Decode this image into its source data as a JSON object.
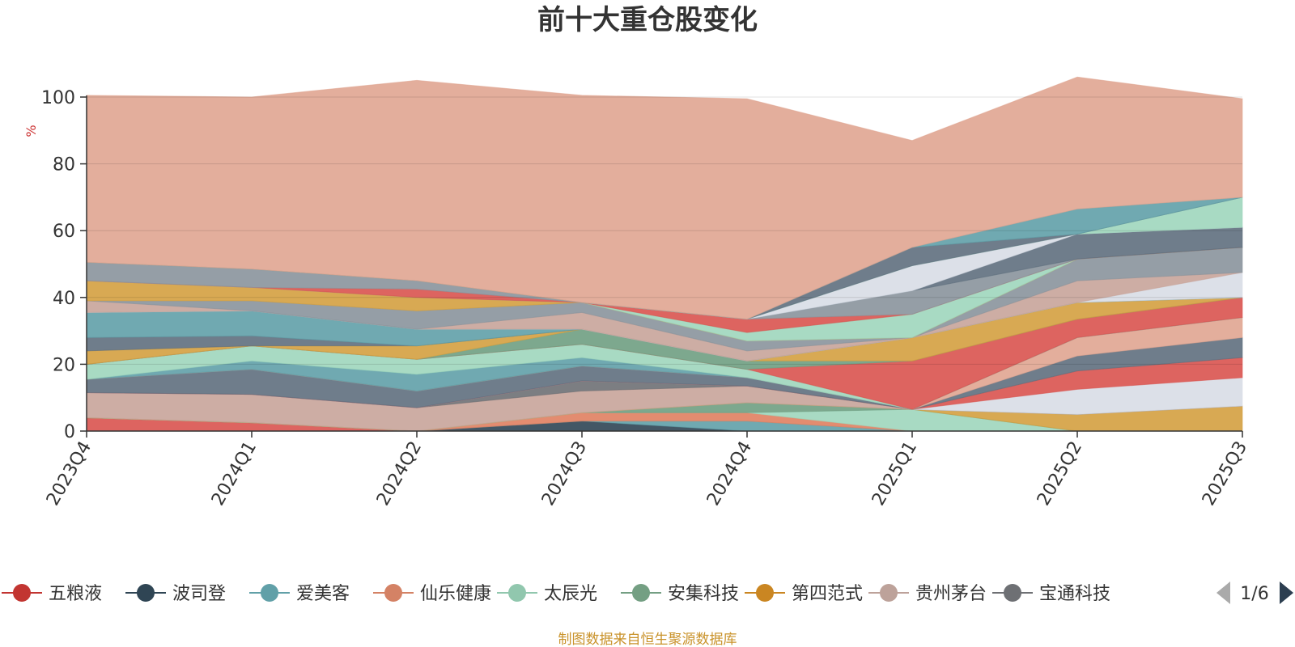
{
  "colors": {
    "background": "#ffffff",
    "other_area": "#e0a591",
    "source_text": "#c9922a",
    "unit_text": "#cc3333",
    "pager_active": "#2c3e50",
    "pager_inactive": "#aaaaaa"
  },
  "chart_data": {
    "type": "area",
    "stacked": true,
    "title": "前十大重仓股变化",
    "ylabel": "%",
    "ylim": [
      0,
      100
    ],
    "yticks": [
      0,
      20,
      40,
      60,
      80,
      100
    ],
    "grid": true,
    "categories": [
      "2023Q4",
      "2024Q1",
      "2024Q2",
      "2024Q3",
      "2024Q4",
      "2025Q1",
      "2025Q2",
      "2025Q3"
    ],
    "series": [
      {
        "name": "五粮液",
        "color": "#d9534f",
        "values": [
          4.0,
          2.5,
          0,
          0,
          0,
          0,
          0,
          0
        ]
      },
      {
        "name": "波司登",
        "color": "#2f4554",
        "values": [
          0,
          0,
          0,
          3.0,
          0,
          0,
          0,
          0
        ]
      },
      {
        "name": "爱美客",
        "color": "#61a0a8",
        "values": [
          0,
          0,
          0,
          0,
          3.0,
          0,
          0,
          0
        ]
      },
      {
        "name": "仙乐健康",
        "color": "#e08060",
        "values": [
          0,
          0,
          0,
          2.5,
          2.5,
          0,
          0,
          0
        ]
      },
      {
        "name": "太辰光",
        "color": "#9fd6bd",
        "values": [
          0,
          0,
          0,
          0,
          0,
          6.5,
          0,
          0
        ]
      },
      {
        "name": "安集科技",
        "color": "#6f9e82",
        "values": [
          0,
          0,
          0,
          0,
          3.0,
          0,
          0,
          0
        ]
      },
      {
        "name": "第四范式",
        "color": "#d4a040",
        "values": [
          0,
          0,
          0,
          0,
          0,
          0,
          5.0,
          7.5
        ]
      },
      {
        "name": "贵州茅台",
        "color": "#c8a49a",
        "values": [
          7.5,
          8.5,
          7.0,
          6.5,
          5.0,
          0,
          0,
          0
        ]
      },
      {
        "name": "宝通科技",
        "color": "#6e7074",
        "values": [
          0,
          0,
          0,
          3.0,
          0,
          0,
          0,
          0
        ]
      },
      {
        "color": "#d8dde6",
        "values": [
          0,
          0,
          0,
          0,
          0,
          0,
          7.5,
          8.5
        ]
      },
      {
        "color": "#d9534f",
        "values": [
          0,
          0,
          0,
          0,
          0,
          0,
          5.5,
          6.0
        ]
      },
      {
        "color": "#5f6f7e",
        "values": [
          4.0,
          7.5,
          5.0,
          4.5,
          2.5,
          0,
          4.5,
          6.0
        ]
      },
      {
        "color": "#e0a591",
        "values": [
          0,
          0,
          0,
          0,
          0,
          0,
          5.5,
          6.0
        ]
      },
      {
        "color": "#61a0a8",
        "values": [
          0,
          2.5,
          5.0,
          2.5,
          0,
          0,
          0,
          0
        ]
      },
      {
        "color": "#9fd6bd",
        "values": [
          4.5,
          4.5,
          4.5,
          4.0,
          2.5,
          0,
          0,
          0
        ]
      },
      {
        "color": "#d9534f",
        "values": [
          0,
          0,
          0,
          0,
          0,
          14.5,
          5.5,
          6.0
        ]
      },
      {
        "color": "#6f9e82",
        "values": [
          0,
          0,
          0,
          4.5,
          2.5,
          0,
          0,
          0
        ]
      },
      {
        "color": "#d4a040",
        "values": [
          4.0,
          0,
          4.0,
          0,
          0,
          7.0,
          5.0,
          0
        ]
      },
      {
        "color": "#5f6f7e",
        "values": [
          4.0,
          3.0,
          0,
          0,
          0,
          0,
          0,
          0
        ]
      },
      {
        "color": "#61a0a8",
        "values": [
          7.5,
          7.5,
          5.0,
          0,
          0,
          0,
          0,
          0
        ]
      },
      {
        "color": "#d8dde6",
        "values": [
          0,
          0,
          0,
          0,
          0,
          0,
          0,
          7.5
        ]
      },
      {
        "color": "#c8a49a",
        "values": [
          3.5,
          0,
          0,
          5.0,
          3.0,
          0,
          6.5,
          0
        ]
      },
      {
        "color": "#8a949c",
        "values": [
          0,
          3.0,
          5.5,
          3.0,
          3.0,
          0,
          6.5,
          7.5
        ]
      },
      {
        "color": "#d4a040",
        "values": [
          6.0,
          4.0,
          4.0,
          0,
          0,
          0,
          0,
          0
        ]
      },
      {
        "color": "#9fd6bd",
        "values": [
          0,
          0,
          0,
          0,
          2.5,
          7.0,
          0,
          0
        ]
      },
      {
        "color": "#d9534f",
        "values": [
          0,
          0,
          2.5,
          0,
          4.0,
          0,
          0,
          0
        ]
      },
      {
        "color": "#8a949c",
        "values": [
          5.5,
          5.5,
          2.5,
          0,
          0,
          7.0,
          0,
          0
        ]
      },
      {
        "color": "#5f6f7e",
        "values": [
          0,
          0,
          0,
          0,
          0,
          0,
          7.5,
          6.0
        ]
      },
      {
        "color": "#d8dde6",
        "values": [
          0,
          0,
          0,
          0,
          0,
          7.5,
          0,
          0
        ]
      },
      {
        "color": "#9fd6bd",
        "values": [
          0,
          0,
          0,
          0,
          0,
          0,
          0,
          9.0
        ]
      },
      {
        "color": "#5f6f7e",
        "values": [
          0,
          0,
          0,
          0,
          0,
          5.5,
          0,
          0
        ]
      },
      {
        "color": "#61a0a8",
        "values": [
          0,
          0,
          0,
          0,
          0,
          0,
          7.5,
          0
        ]
      },
      {
        "color": "#e0a591",
        "values": [
          50.0,
          51.5,
          60.0,
          62.0,
          66.0,
          32.0,
          39.5,
          29.5
        ]
      }
    ]
  },
  "legend": {
    "items": [
      {
        "label": "五粮液",
        "color": "#c23531"
      },
      {
        "label": "波司登",
        "color": "#2f4554"
      },
      {
        "label": "爱美客",
        "color": "#61a0a8"
      },
      {
        "label": "仙乐健康",
        "color": "#d48265"
      },
      {
        "label": "太辰光",
        "color": "#91c7ae"
      },
      {
        "label": "安集科技",
        "color": "#749f83"
      },
      {
        "label": "第四范式",
        "color": "#ca8622"
      },
      {
        "label": "贵州茅台",
        "color": "#bda29a"
      },
      {
        "label": "宝通科技",
        "color": "#6e7074"
      }
    ],
    "page": "1/6"
  },
  "source": "制图数据来自恒生聚源数据库"
}
